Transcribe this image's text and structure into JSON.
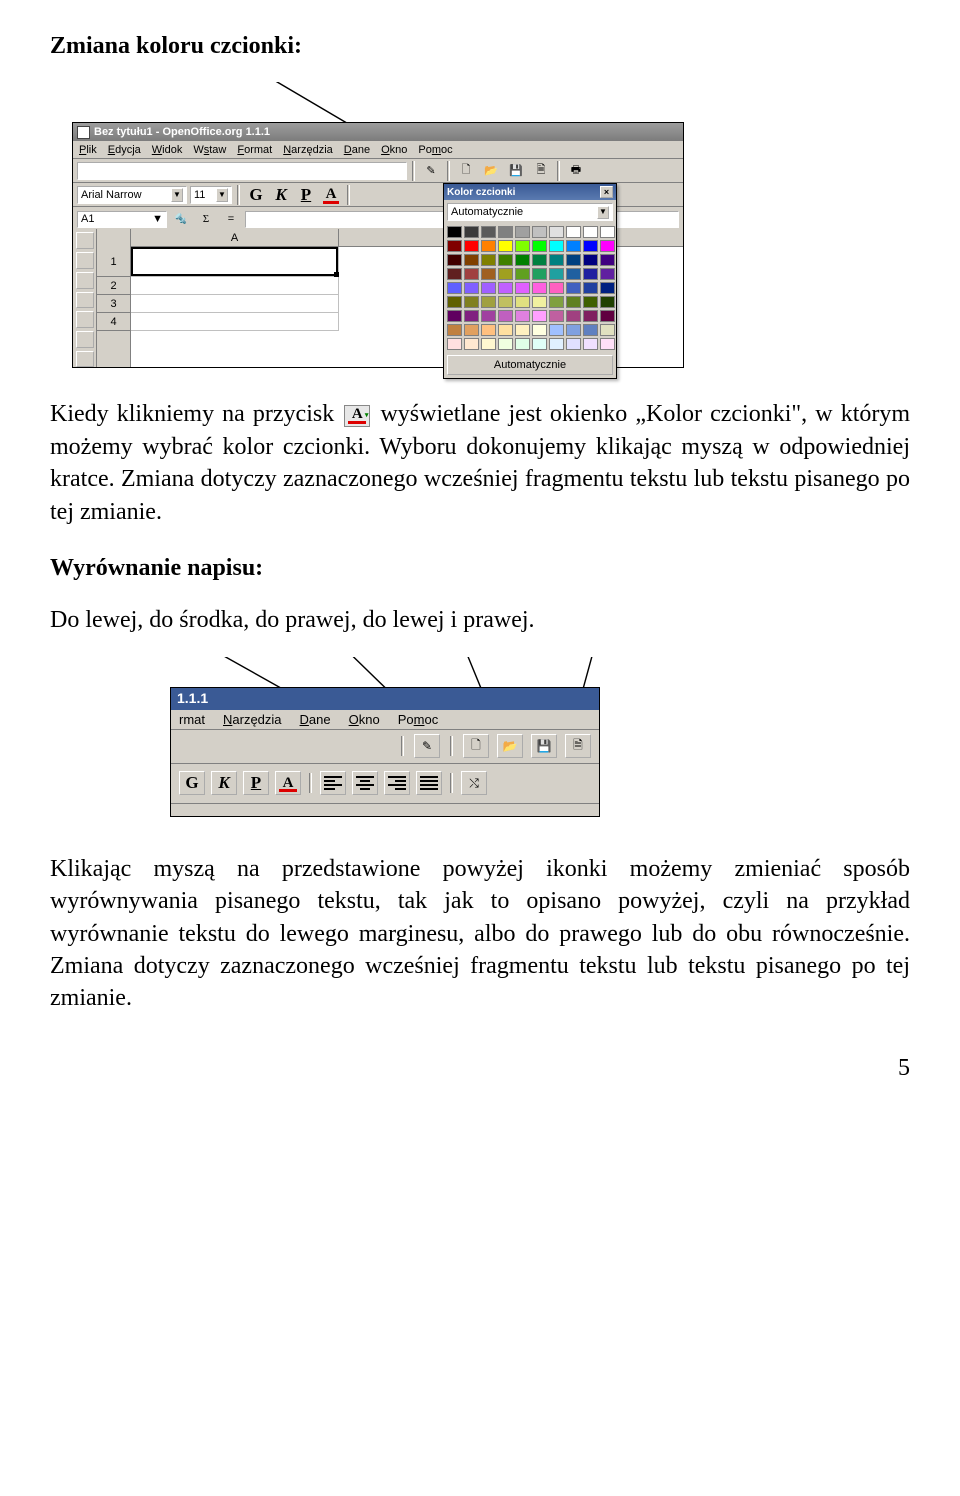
{
  "heading1": "Zmiana koloru czcionki:",
  "para1a": "Kiedy klikniemy na przycisk ",
  "para1b": " wyświetlane jest okienko „Kolor czcionki\", w którym możemy wybrać kolor czcionki. Wyboru dokonujemy klikając myszą w odpowiedniej kratce. Zmiana dotyczy zaznaczonego wcześniej fragmentu tekstu lub tekstu pisanego po tej zmianie.",
  "heading2": "Wyrównanie napisu:",
  "para2": "Do lewej, do środka, do prawej, do lewej i prawej.",
  "para3": "Klikając myszą na przedstawione powyżej ikonki możemy zmieniać sposób wyrównywania pisanego tekstu, tak jak to opisano powyżej, czyli na przykład wyrównanie tekstu do lewego marginesu, albo do prawego lub do obu równocześnie. Zmiana dotyczy zaznaczonego wcześniej fragmentu tekstu lub tekstu pisanego po tej zmianie.",
  "pageNum": "5",
  "win1": {
    "title": "Bez tytułu1 - OpenOffice.org 1.1.1",
    "menus": [
      "Plik",
      "Edycja",
      "Widok",
      "Wstaw",
      "Format",
      "Narzędzia",
      "Dane",
      "Okno",
      "Pomoc"
    ],
    "fontName": "Arial Narrow",
    "fontSize": "11",
    "cellRef": "A1",
    "colA": "A",
    "rows": [
      "1",
      "2",
      "3",
      "4"
    ]
  },
  "colorPicker": {
    "title": "Kolor czcionki",
    "autoText": "Automatycznie",
    "autoBtn": "Automatycznie",
    "rows": [
      [
        "#000000",
        "#3a3a3a",
        "#5a5a5a",
        "#808080",
        "#a0a0a0",
        "#c0c0c0",
        "#e0e0e0",
        "#ffffff",
        "#ffffff",
        "#ffffff"
      ],
      [
        "#800000",
        "#ff0000",
        "#ff8000",
        "#ffff00",
        "#80ff00",
        "#00ff00",
        "#00ffff",
        "#0080ff",
        "#0000ff",
        "#ff00ff"
      ],
      [
        "#400000",
        "#804000",
        "#808000",
        "#408000",
        "#008000",
        "#008040",
        "#008080",
        "#004080",
        "#000080",
        "#400080"
      ],
      [
        "#602020",
        "#a04040",
        "#a06020",
        "#a0a020",
        "#60a020",
        "#20a060",
        "#20a0a0",
        "#2060a0",
        "#2020a0",
        "#6020a0"
      ],
      [
        "#6060ff",
        "#8060ff",
        "#a060ff",
        "#c060ff",
        "#e060ff",
        "#ff60e0",
        "#ff60c0",
        "#4060c0",
        "#2040a0",
        "#002080"
      ],
      [
        "#606000",
        "#808020",
        "#a0a040",
        "#c0c060",
        "#e0e080",
        "#f0f0a0",
        "#80a040",
        "#608020",
        "#406000",
        "#204000"
      ],
      [
        "#600060",
        "#802080",
        "#a040a0",
        "#c060c0",
        "#e080e0",
        "#ffa0ff",
        "#c060a0",
        "#a04080",
        "#802060",
        "#600040"
      ],
      [
        "#c08040",
        "#e0a060",
        "#ffc080",
        "#ffe0a0",
        "#fff0c0",
        "#ffffe0",
        "#a0c0ff",
        "#80a0e0",
        "#6080c0",
        "#e0e0c0"
      ],
      [
        "#ffe0e0",
        "#ffe8d0",
        "#fff8d0",
        "#f0ffe0",
        "#e0ffe8",
        "#e0fff8",
        "#e0f0ff",
        "#e0e0ff",
        "#f0e0ff",
        "#ffe0f8"
      ]
    ]
  },
  "win2": {
    "titleVer": "1.1.1",
    "menus": [
      "rmat",
      "Narzędzia",
      "Dane",
      "Okno",
      "Pomoc"
    ]
  }
}
